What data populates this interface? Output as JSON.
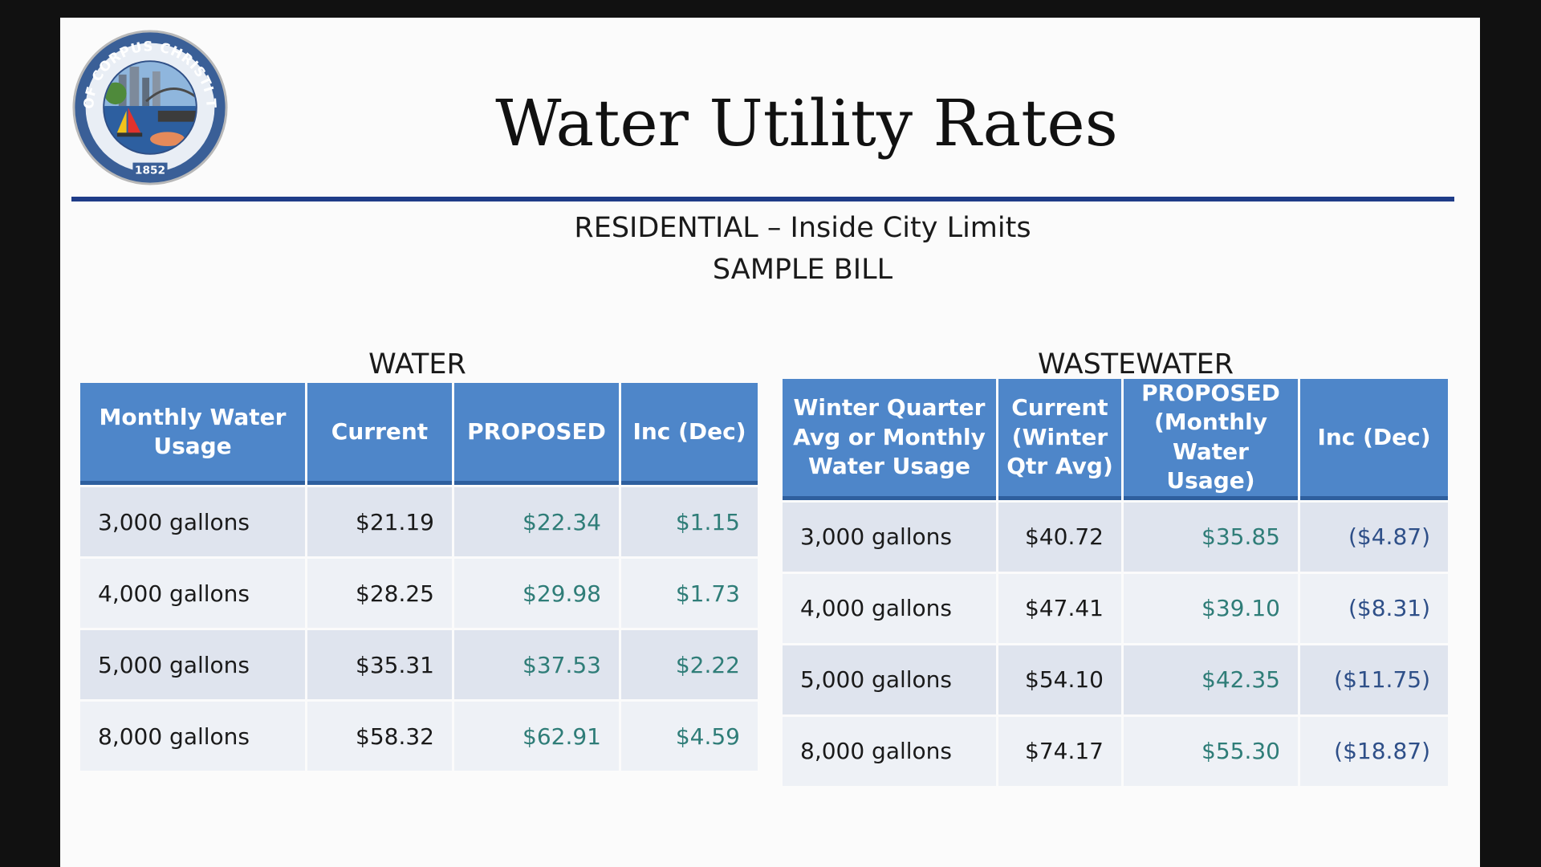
{
  "seal": {
    "ring_text": "CITY OF CORPUS CHRISTI TEXAS",
    "year": "1852"
  },
  "title": "Water Utility Rates",
  "subtitle_line1": "RESIDENTIAL – Inside City Limits",
  "subtitle_line2": "SAMPLE BILL",
  "colors": {
    "header_fill": "#4e86c9",
    "rule": "#1f3c88",
    "row_odd": "#dfe4ee",
    "row_even": "#eef1f6",
    "proposed_text": "#2f7d78"
  },
  "water": {
    "heading": "WATER",
    "headers": [
      "Monthly Water Usage",
      "Current",
      "PROPOSED",
      "Inc (Dec)"
    ],
    "rows": [
      {
        "usage": "3,000 gallons",
        "current": "$21.19",
        "proposed": "$22.34",
        "change": "$1.15"
      },
      {
        "usage": "4,000 gallons",
        "current": "$28.25",
        "proposed": "$29.98",
        "change": "$1.73"
      },
      {
        "usage": "5,000 gallons",
        "current": "$35.31",
        "proposed": "$37.53",
        "change": "$2.22"
      },
      {
        "usage": "8,000 gallons",
        "current": "$58.32",
        "proposed": "$62.91",
        "change": "$4.59"
      }
    ]
  },
  "wastewater": {
    "heading": "WASTEWATER",
    "headers": [
      "Winter Quarter Avg or Monthly Water Usage",
      "Current (Winter Qtr Avg)",
      "PROPOSED (Monthly Water Usage)",
      "Inc (Dec)"
    ],
    "rows": [
      {
        "usage": "3,000 gallons",
        "current": "$40.72",
        "proposed": "$35.85",
        "change": "($4.87)"
      },
      {
        "usage": "4,000 gallons",
        "current": "$47.41",
        "proposed": "$39.10",
        "change": "($8.31)"
      },
      {
        "usage": "5,000 gallons",
        "current": "$54.10",
        "proposed": "$42.35",
        "change": "($11.75)"
      },
      {
        "usage": "8,000 gallons",
        "current": "$74.17",
        "proposed": "$55.30",
        "change": "($18.87)"
      }
    ]
  }
}
